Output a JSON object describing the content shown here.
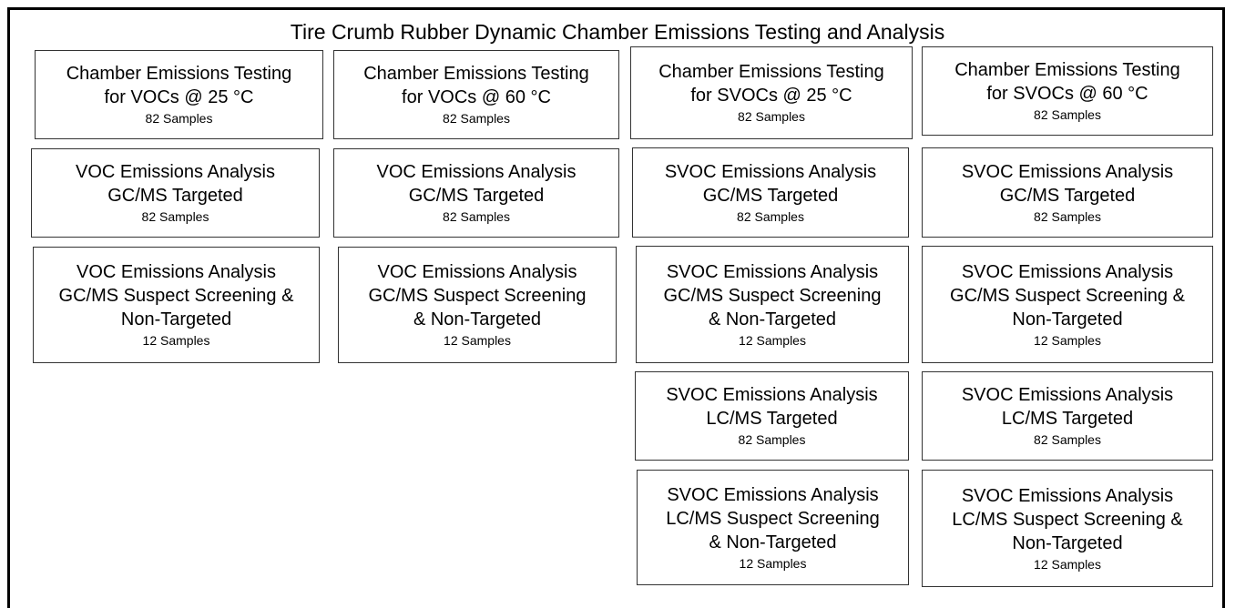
{
  "title": "Tire Crumb Rubber Dynamic Chamber Emissions Testing and Analysis",
  "columns": [
    {
      "boxes": [
        {
          "lines": [
            "Chamber Emissions Testing",
            "for VOCs @ 25 °C"
          ],
          "samples": "82 Samples"
        },
        {
          "lines": [
            "VOC Emissions Analysis",
            "GC/MS Targeted"
          ],
          "samples": "82 Samples"
        },
        {
          "lines": [
            "VOC Emissions Analysis",
            "GC/MS Suspect Screening &",
            "Non-Targeted"
          ],
          "samples": "12 Samples"
        }
      ]
    },
    {
      "boxes": [
        {
          "lines": [
            "Chamber Emissions Testing",
            "for VOCs @ 60 °C"
          ],
          "samples": "82 Samples"
        },
        {
          "lines": [
            "VOC Emissions Analysis",
            "GC/MS Targeted"
          ],
          "samples": "82 Samples"
        },
        {
          "lines": [
            "VOC Emissions Analysis",
            "GC/MS Suspect Screening",
            "& Non-Targeted"
          ],
          "samples": "12 Samples"
        }
      ]
    },
    {
      "boxes": [
        {
          "lines": [
            "Chamber Emissions Testing",
            "for SVOCs @ 25 °C"
          ],
          "samples": "82 Samples"
        },
        {
          "lines": [
            "SVOC Emissions Analysis",
            "GC/MS Targeted"
          ],
          "samples": "82 Samples"
        },
        {
          "lines": [
            "SVOC Emissions Analysis",
            "GC/MS Suspect Screening",
            "& Non-Targeted"
          ],
          "samples": "12 Samples"
        },
        {
          "lines": [
            "SVOC Emissions Analysis",
            "LC/MS Targeted"
          ],
          "samples": "82 Samples"
        },
        {
          "lines": [
            "SVOC Emissions Analysis",
            "LC/MS Suspect Screening",
            "& Non-Targeted"
          ],
          "samples": "12 Samples"
        }
      ]
    },
    {
      "boxes": [
        {
          "lines": [
            "Chamber Emissions Testing",
            "for SVOCs @ 60 °C"
          ],
          "samples": "82 Samples"
        },
        {
          "lines": [
            "SVOC Emissions Analysis",
            "GC/MS Targeted"
          ],
          "samples": "82 Samples"
        },
        {
          "lines": [
            "SVOC Emissions Analysis",
            "GC/MS Suspect Screening &",
            "Non-Targeted"
          ],
          "samples": "12 Samples"
        },
        {
          "lines": [
            "SVOC Emissions Analysis",
            "LC/MS Targeted"
          ],
          "samples": "82 Samples"
        },
        {
          "lines": [
            "SVOC Emissions Analysis",
            "LC/MS Suspect Screening &",
            "Non-Targeted"
          ],
          "samples": "12 Samples"
        }
      ]
    }
  ]
}
